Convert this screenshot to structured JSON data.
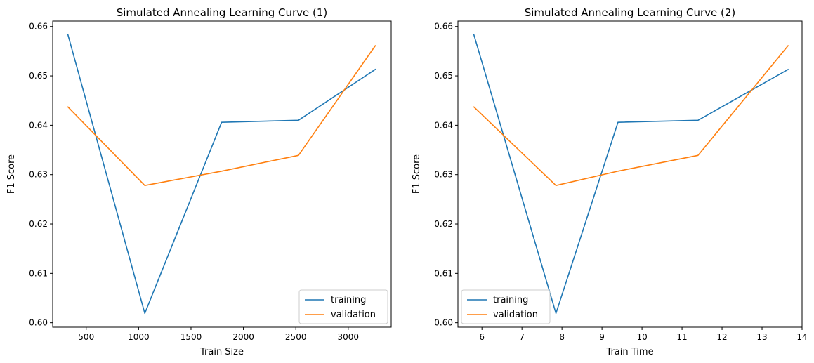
{
  "colors": {
    "training": "#1f77b4",
    "validation": "#ff7f0e"
  },
  "chart_data": [
    {
      "type": "line",
      "title": "Simulated Annealing Learning Curve (1)",
      "xlabel": "Train Size",
      "ylabel": "F1 Score",
      "xlim": [
        180,
        3410
      ],
      "ylim": [
        0.5991,
        0.6611
      ],
      "xticks": [
        500,
        1000,
        1500,
        2000,
        2500,
        3000
      ],
      "xtick_labels": [
        "500",
        "1000",
        "1500",
        "2000",
        "2500",
        "3000"
      ],
      "yticks": [
        0.6,
        0.61,
        0.62,
        0.63,
        0.64,
        0.65,
        0.66
      ],
      "ytick_labels": [
        "0.60",
        "0.61",
        "0.62",
        "0.63",
        "0.64",
        "0.65",
        "0.66"
      ],
      "grid": false,
      "legend": "lower-right",
      "series": [
        {
          "name": "training",
          "x": [
            326,
            1059,
            1792,
            2525,
            3258
          ],
          "y": [
            0.6583,
            0.6019,
            0.6406,
            0.641,
            0.6513
          ]
        },
        {
          "name": "validation",
          "x": [
            326,
            1059,
            1792,
            2525,
            3258
          ],
          "y": [
            0.6437,
            0.6278,
            0.6307,
            0.6339,
            0.6561
          ]
        }
      ]
    },
    {
      "type": "line",
      "title": "Simulated Annealing Learning Curve (2)",
      "xlabel": "Train Time",
      "ylabel": "F1 Score",
      "xlim": [
        5.4,
        14.0
      ],
      "ylim": [
        0.5991,
        0.6611
      ],
      "xticks": [
        6,
        7,
        8,
        9,
        10,
        11,
        12,
        13,
        14
      ],
      "xtick_labels": [
        "6",
        "7",
        "8",
        "9",
        "10",
        "11",
        "12",
        "13",
        "14"
      ],
      "yticks": [
        0.6,
        0.61,
        0.62,
        0.63,
        0.64,
        0.65,
        0.66
      ],
      "ytick_labels": [
        "0.60",
        "0.61",
        "0.62",
        "0.63",
        "0.64",
        "0.65",
        "0.66"
      ],
      "grid": false,
      "legend": "lower-left",
      "series": [
        {
          "name": "training",
          "x": [
            5.8,
            7.85,
            9.4,
            11.4,
            13.65
          ],
          "y": [
            0.6583,
            0.6019,
            0.6406,
            0.641,
            0.6513
          ]
        },
        {
          "name": "validation",
          "x": [
            5.8,
            7.85,
            9.4,
            11.4,
            13.65
          ],
          "y": [
            0.6437,
            0.6278,
            0.6307,
            0.6339,
            0.6561
          ]
        }
      ]
    }
  ]
}
